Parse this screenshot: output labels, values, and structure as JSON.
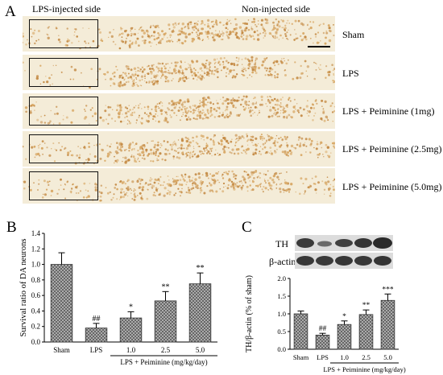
{
  "panelA": {
    "letter": "A",
    "left_header": "LPS-injected side",
    "right_header": "Non-injected side",
    "rows": [
      {
        "label": "Sham"
      },
      {
        "label": "LPS"
      },
      {
        "label": "LPS + Peiminine (1mg)"
      },
      {
        "label": "LPS + Peiminine (2.5mg)"
      },
      {
        "label": "LPS + Peiminine (5.0mg)"
      }
    ]
  },
  "panelB": {
    "letter": "B",
    "group_label": "LPS + Peiminine (mg/kg/day)"
  },
  "panelC": {
    "letter": "C",
    "group_label": "LPS + Peiminine (mg/kg/day)",
    "blot_labels": [
      "TH",
      "β-actin"
    ]
  },
  "chart_data": [
    {
      "type": "bar",
      "categories": [
        "Sham",
        "LPS",
        "1.0",
        "2.5",
        "5.0"
      ],
      "values": [
        1.0,
        0.18,
        0.31,
        0.53,
        0.75
      ],
      "errors": [
        0.15,
        0.06,
        0.08,
        0.12,
        0.14
      ],
      "significance": [
        "",
        "##",
        "*",
        "**",
        "**"
      ],
      "ylabel": "Survival ratio of DA neurons",
      "xlabel": "",
      "ylim": [
        0,
        1.4
      ],
      "yticks": [
        "0.0",
        "0.2",
        "0.4",
        "0.6",
        "0.8",
        "1.0",
        "1.2",
        "1.4"
      ]
    },
    {
      "type": "bar",
      "categories": [
        "Sham",
        "LPS",
        "1.0",
        "2.5",
        "5.0"
      ],
      "values": [
        1.0,
        0.4,
        0.7,
        0.98,
        1.38
      ],
      "errors": [
        0.08,
        0.05,
        0.1,
        0.13,
        0.18
      ],
      "significance": [
        "",
        "##",
        "*",
        "**",
        "***"
      ],
      "ylabel": "TH/β-actin (% of sham)",
      "xlabel": "",
      "ylim": [
        0,
        2.0
      ],
      "yticks": [
        "0.0",
        "0.5",
        "1.0",
        "1.5",
        "2.0"
      ]
    }
  ],
  "colors": {
    "stain": "#c8904a",
    "bar_fill": "#9a9a9a",
    "blot_bg": "#4a4a4a"
  }
}
